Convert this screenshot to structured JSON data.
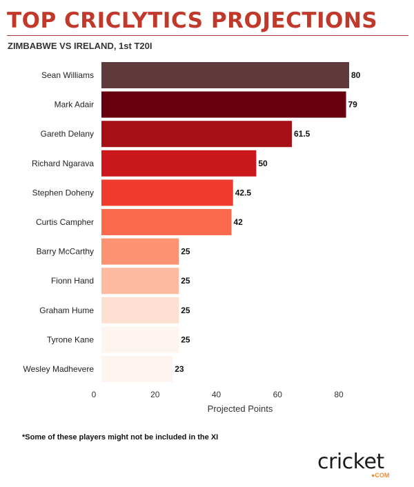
{
  "header": {
    "title": "TOP CRICLYTICS PROJECTIONS",
    "subtitle": "ZIMBABWE VS IRELAND, 1st T20I"
  },
  "chart_data": {
    "type": "bar",
    "orientation": "horizontal",
    "categories": [
      "Sean Williams",
      "Mark Adair",
      "Gareth Delany",
      "Richard Ngarava",
      "Stephen Doheny",
      "Curtis Campher",
      "Barry McCarthy",
      "Fionn Hand",
      "Graham Hume",
      "Tyrone Kane",
      "Wesley Madhevere"
    ],
    "values": [
      80,
      79,
      61.5,
      50,
      42.5,
      42,
      25,
      25,
      25,
      25,
      23
    ],
    "value_labels": [
      "80",
      "79",
      "61.5",
      "50",
      "42.5",
      "42",
      "25",
      "25",
      "25",
      "25",
      "23"
    ],
    "colors": [
      "#5e3a3c",
      "#67000d",
      "#a50f15",
      "#cb181d",
      "#ef3b2c",
      "#fb6a4a",
      "#fc9272",
      "#fcbba1",
      "#fee0d2",
      "#fff5f0",
      "#fff5f0"
    ],
    "xlabel": "Projected Points",
    "xticks": [
      "0",
      "20",
      "40",
      "60",
      "80"
    ],
    "xlim": [
      0,
      80
    ],
    "grid": false
  },
  "footnote": "*Some of these players might not be included in the XI",
  "logo": {
    "text": "cricket",
    "suffix": "●COM"
  }
}
